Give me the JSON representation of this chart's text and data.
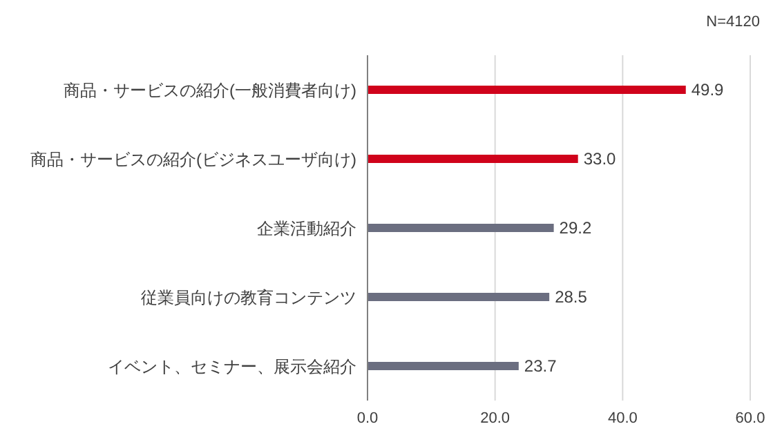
{
  "chart_data": {
    "type": "bar",
    "orientation": "horizontal",
    "categories": [
      "商品・サービスの紹介(一般消費者向け)",
      "商品・サービスの紹介(ビジネスユーザ向け)",
      "企業活動紹介",
      "従業員向けの教育コンテンツ",
      "イベント、セミナー、展示会紹介"
    ],
    "values": [
      49.9,
      33.0,
      29.2,
      28.5,
      23.7
    ],
    "value_labels": [
      "49.9",
      "33.0",
      "29.2",
      "28.5",
      "23.7"
    ],
    "colors": [
      "#d0021b",
      "#d0021b",
      "#6b6e80",
      "#6b6e80",
      "#6b6e80"
    ],
    "xlim": [
      0,
      60
    ],
    "xticks": [
      {
        "value": 0,
        "label": "0.0"
      },
      {
        "value": 20,
        "label": "20.0"
      },
      {
        "value": 40,
        "label": "40.0"
      },
      {
        "value": 60,
        "label": "60.0"
      }
    ],
    "grid": "x",
    "annotations": [
      "N=4120"
    ]
  }
}
